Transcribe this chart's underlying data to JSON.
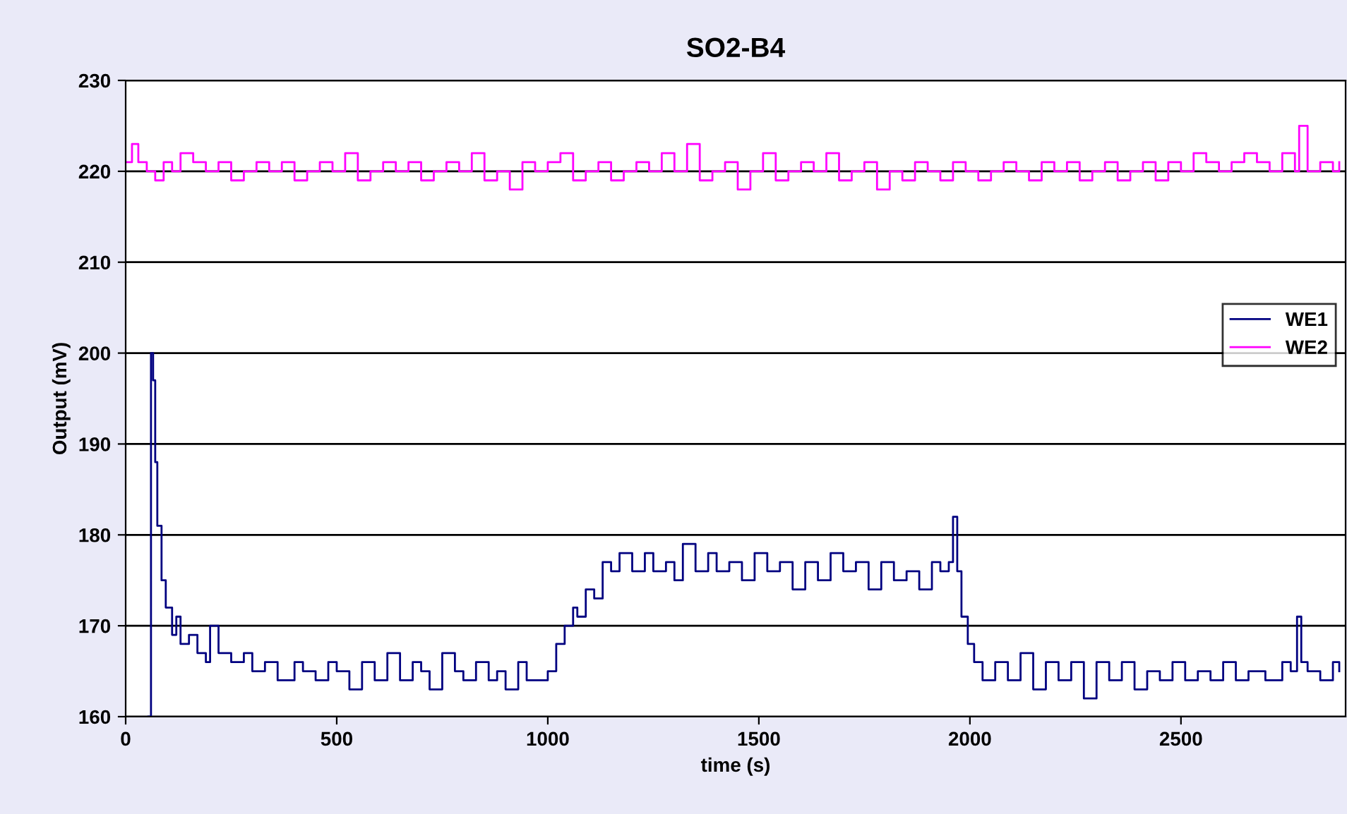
{
  "chart_data": {
    "type": "step",
    "title": "SO2-B4",
    "xlabel": "time (s)",
    "ylabel": "Output (mV)",
    "xlim": [
      0,
      2890
    ],
    "xticks": [
      0,
      500,
      1000,
      1500,
      2000,
      2500
    ],
    "ylim": [
      160,
      230
    ],
    "yticks": [
      160,
      170,
      180,
      190,
      200,
      210,
      220,
      230
    ],
    "grid": "y",
    "legend": "right",
    "marker": "none",
    "line_style": "solid",
    "series": [
      {
        "name": "WE1",
        "color": "#000080",
        "x": [
          54,
          60,
          65,
          70,
          75,
          85,
          95,
          110,
          120,
          130,
          150,
          170,
          190,
          200,
          220,
          250,
          280,
          300,
          330,
          360,
          400,
          420,
          450,
          480,
          500,
          530,
          560,
          590,
          620,
          650,
          680,
          700,
          720,
          750,
          780,
          800,
          830,
          860,
          880,
          900,
          930,
          950,
          980,
          1000,
          1020,
          1040,
          1060,
          1070,
          1090,
          1110,
          1130,
          1150,
          1170,
          1200,
          1230,
          1250,
          1280,
          1300,
          1320,
          1350,
          1380,
          1400,
          1430,
          1460,
          1490,
          1520,
          1550,
          1580,
          1610,
          1640,
          1670,
          1700,
          1730,
          1760,
          1790,
          1820,
          1850,
          1880,
          1910,
          1930,
          1950,
          1960,
          1970,
          1980,
          1995,
          2010,
          2030,
          2060,
          2090,
          2120,
          2150,
          2180,
          2210,
          2240,
          2270,
          2300,
          2330,
          2360,
          2390,
          2420,
          2450,
          2480,
          2510,
          2540,
          2570,
          2600,
          2630,
          2660,
          2700,
          2740,
          2760,
          2775,
          2785,
          2800,
          2830,
          2860,
          2875
        ],
        "values": [
          160,
          200,
          197,
          188,
          181,
          175,
          172,
          169,
          171,
          168,
          169,
          167,
          166,
          170,
          167,
          166,
          167,
          165,
          166,
          164,
          166,
          165,
          164,
          166,
          165,
          163,
          166,
          164,
          167,
          164,
          166,
          165,
          163,
          167,
          165,
          164,
          166,
          164,
          165,
          163,
          166,
          164,
          164,
          165,
          168,
          170,
          172,
          171,
          174,
          173,
          177,
          176,
          178,
          176,
          178,
          176,
          177,
          175,
          179,
          176,
          178,
          176,
          177,
          175,
          178,
          176,
          177,
          174,
          177,
          175,
          178,
          176,
          177,
          174,
          177,
          175,
          176,
          174,
          177,
          176,
          177,
          182,
          176,
          171,
          168,
          166,
          164,
          166,
          164,
          167,
          163,
          166,
          164,
          166,
          162,
          166,
          164,
          166,
          163,
          165,
          164,
          166,
          164,
          165,
          164,
          166,
          164,
          165,
          164,
          166,
          165,
          171,
          166,
          165,
          164,
          166,
          165
        ]
      },
      {
        "name": "WE2",
        "color": "#ff00ff",
        "x": [
          0,
          15,
          30,
          50,
          70,
          90,
          110,
          130,
          160,
          190,
          220,
          250,
          280,
          310,
          340,
          370,
          400,
          430,
          460,
          490,
          520,
          550,
          580,
          610,
          640,
          670,
          700,
          730,
          760,
          790,
          820,
          850,
          880,
          910,
          940,
          970,
          1000,
          1030,
          1060,
          1090,
          1120,
          1150,
          1180,
          1210,
          1240,
          1270,
          1300,
          1330,
          1360,
          1390,
          1420,
          1450,
          1480,
          1510,
          1540,
          1570,
          1600,
          1630,
          1660,
          1690,
          1720,
          1750,
          1780,
          1810,
          1840,
          1870,
          1900,
          1930,
          1960,
          1990,
          2020,
          2050,
          2080,
          2110,
          2140,
          2170,
          2200,
          2230,
          2260,
          2290,
          2320,
          2350,
          2380,
          2410,
          2440,
          2470,
          2500,
          2530,
          2560,
          2590,
          2620,
          2650,
          2680,
          2710,
          2740,
          2770,
          2780,
          2800,
          2830,
          2860,
          2875
        ],
        "values": [
          221,
          223,
          221,
          220,
          219,
          221,
          220,
          222,
          221,
          220,
          221,
          219,
          220,
          221,
          220,
          221,
          219,
          220,
          221,
          220,
          222,
          219,
          220,
          221,
          220,
          221,
          219,
          220,
          221,
          220,
          222,
          219,
          220,
          218,
          221,
          220,
          221,
          222,
          219,
          220,
          221,
          219,
          220,
          221,
          220,
          222,
          220,
          223,
          219,
          220,
          221,
          218,
          220,
          222,
          219,
          220,
          221,
          220,
          222,
          219,
          220,
          221,
          218,
          220,
          219,
          221,
          220,
          219,
          221,
          220,
          219,
          220,
          221,
          220,
          219,
          221,
          220,
          221,
          219,
          220,
          221,
          219,
          220,
          221,
          219,
          221,
          220,
          222,
          221,
          220,
          221,
          222,
          221,
          220,
          222,
          220,
          225,
          220,
          221,
          220,
          221
        ]
      }
    ]
  }
}
